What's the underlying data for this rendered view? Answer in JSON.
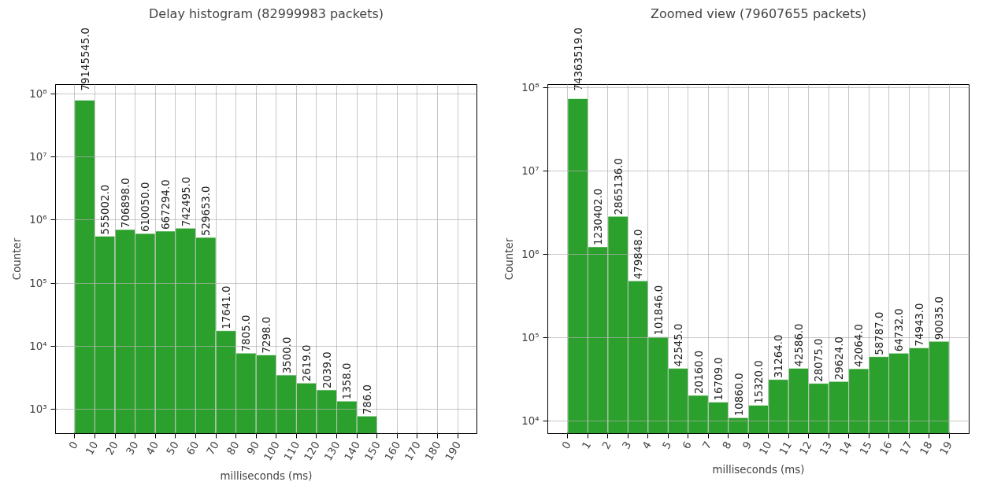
{
  "chart_data": [
    {
      "type": "histogram",
      "title": "Delay histogram (82999983 packets)",
      "xlabel": "milliseconds (ms)",
      "ylabel": "Counter",
      "color": "#2ca02c",
      "log": true,
      "grid": true,
      "bins": [
        0,
        10,
        20,
        30,
        40,
        50,
        60,
        70,
        80,
        90,
        100,
        110,
        120,
        130,
        140,
        150
      ],
      "values": [
        79145545,
        555002,
        706898,
        610050,
        667294,
        742495,
        529653,
        17641,
        7805,
        7298,
        3500,
        2619,
        2039,
        1358,
        786
      ],
      "value_labels": [
        "79145545.0",
        "555002.0",
        "706898.0",
        "610050.0",
        "667294.0",
        "742495.0",
        "529653.0",
        "17641.0",
        "7805.0",
        "7298.0",
        "3500.0",
        "2619.0",
        "2039.0",
        "1358.0",
        "786.0"
      ],
      "xlim": [
        -9.5,
        199.5
      ],
      "xticks": [
        0,
        10,
        20,
        30,
        40,
        50,
        60,
        70,
        80,
        90,
        100,
        110,
        120,
        130,
        140,
        150,
        160,
        170,
        180,
        190
      ],
      "ylim": [
        415,
        140000000
      ],
      "yticks": [
        {
          "value": 1000,
          "label": "10³"
        },
        {
          "value": 10000,
          "label": "10⁴"
        },
        {
          "value": 100000,
          "label": "10⁵"
        },
        {
          "value": 1000000,
          "label": "10⁶"
        },
        {
          "value": 10000000,
          "label": "10⁷"
        },
        {
          "value": 100000000,
          "label": "10⁸"
        }
      ]
    },
    {
      "type": "histogram",
      "title": "Zoomed view (79607655 packets)",
      "xlabel": "milliseconds (ms)",
      "ylabel": "Counter",
      "color": "#2ca02c",
      "log": true,
      "grid": true,
      "bins": [
        0,
        1,
        2,
        3,
        4,
        5,
        6,
        7,
        8,
        9,
        10,
        11,
        12,
        13,
        14,
        15,
        16,
        17,
        18,
        19
      ],
      "values": [
        74363519,
        1230402,
        2865136,
        479848,
        101846,
        42545,
        20160,
        16709,
        10860,
        15320,
        31264,
        42586,
        28075,
        29624,
        42064,
        58787,
        64732,
        74943,
        90035
      ],
      "value_labels": [
        "74363519.0",
        "1230402.0",
        "2865136.0",
        "479848.0",
        "101846.0",
        "42545.0",
        "20160.0",
        "16709.0",
        "10860.0",
        "15320.0",
        "31264.0",
        "42586.0",
        "28075.0",
        "29624.0",
        "42064.0",
        "58787.0",
        "64732.0",
        "74943.0",
        "90035.0"
      ],
      "xlim": [
        -1,
        20
      ],
      "xticks": [
        0,
        1,
        2,
        3,
        4,
        5,
        6,
        7,
        8,
        9,
        10,
        11,
        12,
        13,
        14,
        15,
        16,
        17,
        18,
        19
      ],
      "ylim": [
        7000,
        110000000
      ],
      "yticks": [
        {
          "value": 10000,
          "label": "10⁴"
        },
        {
          "value": 100000,
          "label": "10⁵"
        },
        {
          "value": 1000000,
          "label": "10⁶"
        },
        {
          "value": 10000000,
          "label": "10⁷"
        },
        {
          "value": 100000000,
          "label": "10⁸"
        }
      ]
    }
  ]
}
